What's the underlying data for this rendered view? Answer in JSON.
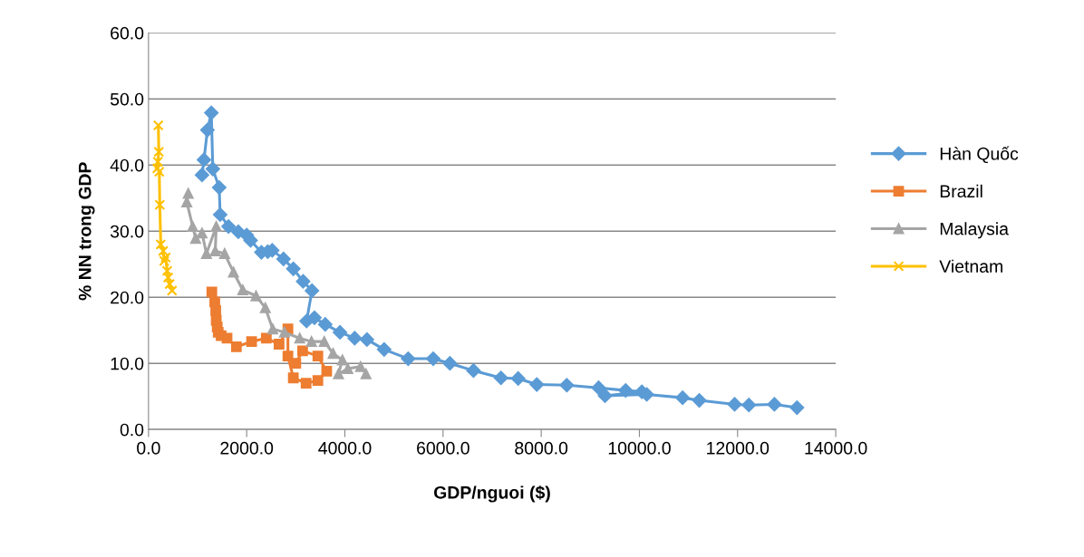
{
  "chart_data": {
    "type": "line",
    "xlabel": "GDP/nguoi ($)",
    "ylabel": "% NN trong GDP",
    "xlim": [
      0,
      14000
    ],
    "ylim": [
      0,
      60
    ],
    "xticks": [
      {
        "value": 0,
        "label": "0.0"
      },
      {
        "value": 2000,
        "label": "2000.0"
      },
      {
        "value": 4000,
        "label": "4000.0"
      },
      {
        "value": 6000,
        "label": "6000.0"
      },
      {
        "value": 8000,
        "label": "8000.0"
      },
      {
        "value": 10000,
        "label": "10000.0"
      },
      {
        "value": 12000,
        "label": "12000.0"
      },
      {
        "value": 14000,
        "label": "14000.0"
      }
    ],
    "yticks": [
      {
        "value": 0,
        "label": "0.0"
      },
      {
        "value": 10,
        "label": "10.0"
      },
      {
        "value": 20,
        "label": "20.0"
      },
      {
        "value": 30,
        "label": "30.0"
      },
      {
        "value": 40,
        "label": "40.0"
      },
      {
        "value": 50,
        "label": "50.0"
      },
      {
        "value": 60,
        "label": "60.0"
      }
    ],
    "grid": "y",
    "legend": "right",
    "series": [
      {
        "name": "Hàn Quốc",
        "color": "#5b9bd5",
        "marker": "diamond",
        "x": [
          1090,
          1130,
          1200,
          1280,
          1310,
          1440,
          1460,
          1630,
          1830,
          2000,
          2080,
          2300,
          2430,
          2520,
          2750,
          2950,
          3150,
          3330,
          3220,
          3380,
          3600,
          3900,
          4200,
          4450,
          4800,
          5290,
          5800,
          6140,
          6620,
          7180,
          7530,
          7910,
          8520,
          9170,
          9720,
          10050,
          9300,
          10150,
          10880,
          11220,
          11940,
          12230,
          12750,
          13210
        ],
        "values": [
          38.5,
          40.8,
          45.3,
          47.9,
          39.4,
          36.6,
          32.5,
          30.7,
          29.9,
          29.4,
          28.6,
          26.8,
          26.9,
          27.1,
          25.8,
          24.3,
          22.4,
          21.0,
          16.4,
          16.9,
          15.9,
          14.7,
          13.8,
          13.6,
          12.1,
          10.7,
          10.7,
          10.0,
          8.9,
          7.8,
          7.7,
          6.8,
          6.7,
          6.3,
          5.9,
          5.7,
          5.1,
          5.3,
          4.8,
          4.4,
          3.8,
          3.7,
          3.8,
          3.3
        ]
      },
      {
        "name": "Brazil",
        "color": "#ed7d31",
        "marker": "square",
        "x": [
          1290,
          1350,
          1370,
          1380,
          1400,
          1420,
          1480,
          1600,
          1790,
          2100,
          2400,
          2660,
          2840,
          2840,
          2950,
          3210,
          3450,
          3630,
          3450,
          3140,
          3000
        ],
        "values": [
          20.8,
          19.3,
          18.0,
          16.5,
          15.5,
          14.7,
          14.2,
          13.8,
          12.5,
          13.3,
          13.8,
          12.9,
          15.2,
          11.1,
          7.8,
          7.0,
          7.4,
          8.8,
          11.1,
          11.9,
          10.0
        ]
      },
      {
        "name": "Malaysia",
        "color": "#a5a5a5",
        "marker": "triangle",
        "x": [
          810,
          780,
          900,
          960,
          1090,
          1180,
          1380,
          1360,
          1550,
          1730,
          1920,
          2190,
          2380,
          2530,
          2770,
          3080,
          3320,
          3580,
          3760,
          3950,
          3870,
          4060,
          4320,
          4430
        ],
        "values": [
          35.7,
          34.4,
          30.7,
          28.9,
          29.7,
          26.6,
          30.7,
          27.0,
          26.6,
          23.8,
          21.1,
          20.2,
          18.4,
          15.2,
          14.7,
          13.8,
          13.3,
          13.3,
          11.5,
          10.5,
          8.4,
          9.2,
          9.5,
          8.4
        ]
      },
      {
        "name": "Vietnam",
        "color": "#ffc000",
        "marker": "cross",
        "x": [
          200,
          210,
          190,
          180,
          220,
          230,
          250,
          300,
          320,
          350,
          380,
          400,
          430,
          480
        ],
        "values": [
          46.0,
          42.0,
          40.5,
          39.5,
          39.0,
          34.0,
          28.0,
          27.0,
          25.5,
          26.0,
          24.0,
          23.0,
          22.0,
          21.0
        ]
      }
    ]
  }
}
